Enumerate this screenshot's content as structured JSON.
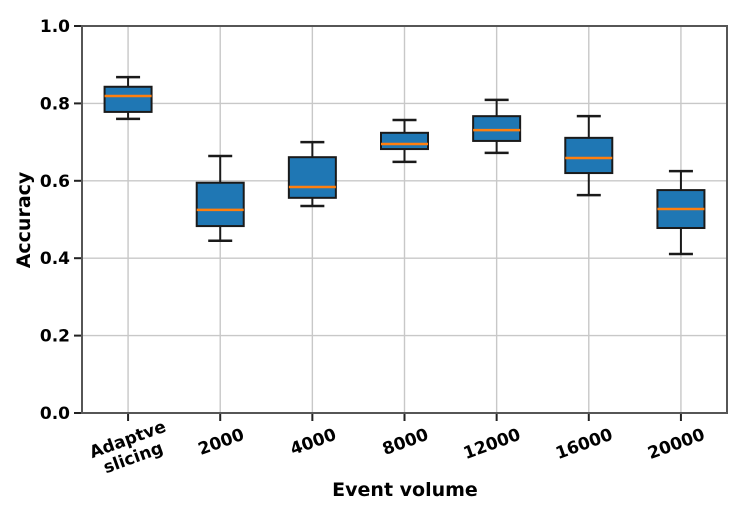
{
  "figure": {
    "background": "#ffffff"
  },
  "chart_data": {
    "type": "box",
    "title": "",
    "xlabel": "Event volume",
    "ylabel": "Accuracy",
    "ylim": [
      0.0,
      1.0
    ],
    "yticks": [
      0.0,
      0.2,
      0.4,
      0.6,
      0.8,
      1.0
    ],
    "grid": true,
    "legend": "none",
    "categories": [
      "Adaptve\nslicing",
      "2000",
      "4000",
      "8000",
      "12000",
      "16000",
      "20000"
    ],
    "boxes": [
      {
        "label": "Adaptve\nslicing",
        "whislo": 0.76,
        "q1": 0.778,
        "med": 0.819,
        "q3": 0.843,
        "whishi": 0.868
      },
      {
        "label": "2000",
        "whislo": 0.445,
        "q1": 0.483,
        "med": 0.525,
        "q3": 0.595,
        "whishi": 0.664
      },
      {
        "label": "4000",
        "whislo": 0.535,
        "q1": 0.556,
        "med": 0.584,
        "q3": 0.661,
        "whishi": 0.7
      },
      {
        "label": "8000",
        "whislo": 0.649,
        "q1": 0.682,
        "med": 0.695,
        "q3": 0.724,
        "whishi": 0.757
      },
      {
        "label": "12000",
        "whislo": 0.672,
        "q1": 0.703,
        "med": 0.731,
        "q3": 0.767,
        "whishi": 0.809
      },
      {
        "label": "16000",
        "whislo": 0.563,
        "q1": 0.62,
        "med": 0.659,
        "q3": 0.711,
        "whishi": 0.767
      },
      {
        "label": "20000",
        "whislo": 0.411,
        "q1": 0.478,
        "med": 0.527,
        "q3": 0.576,
        "whishi": 0.625
      }
    ],
    "colors": {
      "box_fill": "#1f77b4",
      "box_edge": "#1a1a1a",
      "median": "#ff7f0e",
      "whisker": "#1a1a1a",
      "cap": "#1a1a1a",
      "grid": "#c8c8c8",
      "spine": "#565656",
      "tick": "#222222",
      "tick_text": "#000000"
    }
  }
}
